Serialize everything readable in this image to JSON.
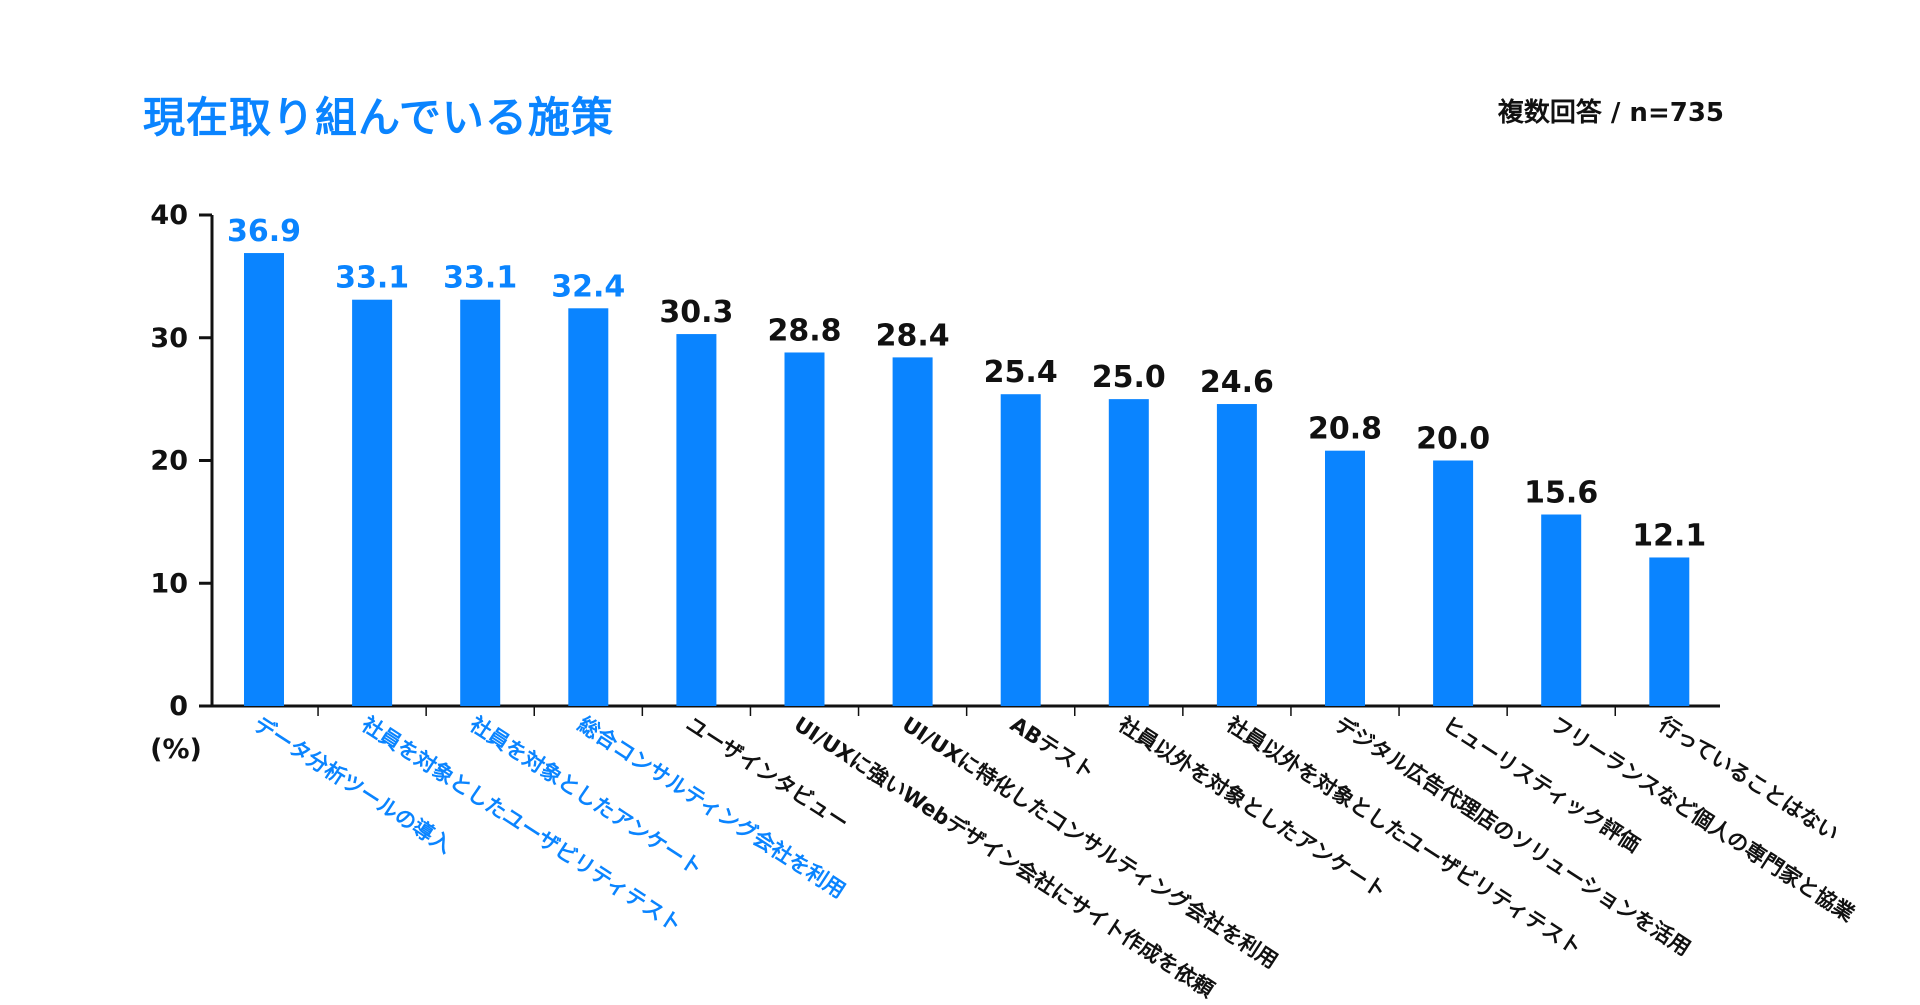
{
  "header": {
    "title": "現在取り組んでいる施策",
    "note": "複数回答 / n=735"
  },
  "colors": {
    "bar": "#0a84ff",
    "highlight_text": "#0a84ff",
    "normal_text": "#111111",
    "axis": "#111111"
  },
  "chart_data": {
    "type": "bar",
    "title": "現在取り組んでいる施策",
    "ylabel": "(%)",
    "xlabel": "",
    "ylim": [
      0,
      40
    ],
    "yticks": [
      0,
      10,
      20,
      30,
      40
    ],
    "grid": false,
    "highlight_top_n": 4,
    "categories": [
      "データ分析ツールの導入",
      "社員を対象としたユーザビリティテスト",
      "社員を対象としたアンケート",
      "総合コンサルティング会社を利用",
      "ユーザインタビュー",
      "UI/UXに強いWebデザイン会社にサイト作成を依頼",
      "UI/UXに特化したコンサルティング会社を利用",
      "ABテスト",
      "社員以外を対象としたアンケート",
      "社員以外を対象としたユーザビリティテスト",
      "デジタル広告代理店のソリューションを活用",
      "ヒューリスティック評価",
      "フリーランスなど個人の専門家と協業",
      "行っていることはない"
    ],
    "values": [
      36.9,
      33.1,
      33.1,
      32.4,
      30.3,
      28.8,
      28.4,
      25.4,
      25.0,
      24.6,
      20.8,
      20.0,
      15.6,
      12.1
    ]
  }
}
